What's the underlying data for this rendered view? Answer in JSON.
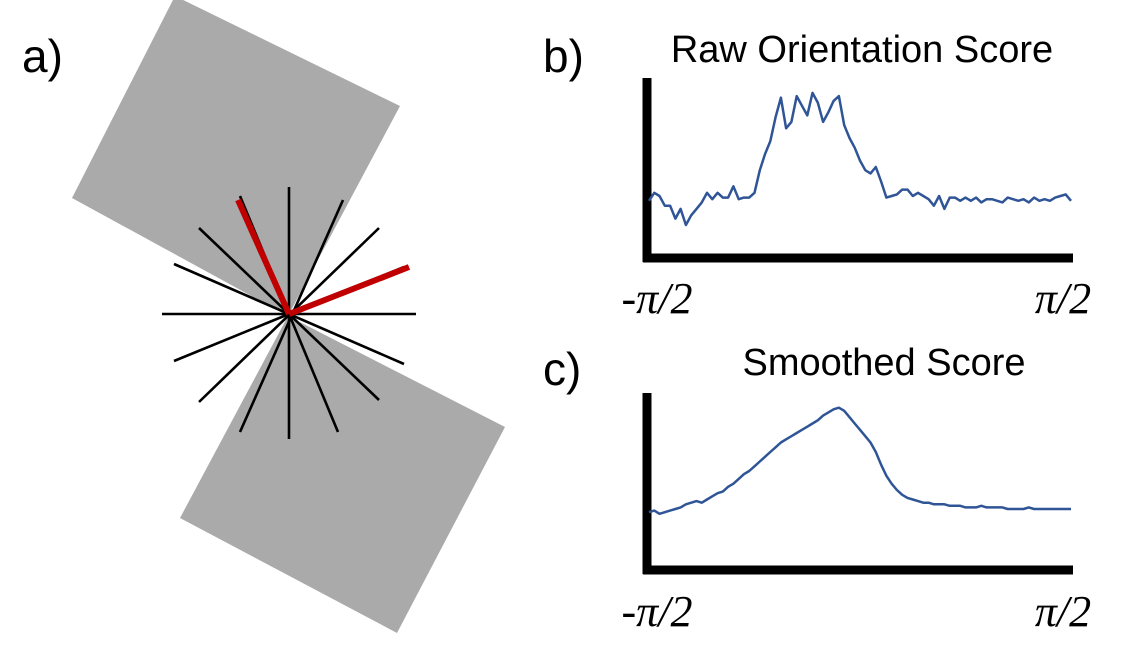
{
  "figure": {
    "panel_a": {
      "label": "a)"
    },
    "panel_b": {
      "label": "b)",
      "title": "Raw Orientation Score"
    },
    "panel_c": {
      "label": "c)",
      "title": "Smoothed Score"
    }
  },
  "colors": {
    "square_fill": "#aaaaaa",
    "black_line": "#000000",
    "highlight_red": "#c00000",
    "curve_blue": "#2f5597"
  },
  "chart_data": [
    {
      "type": "line",
      "title": "Raw Orientation Score",
      "x_tick_labels": [
        "-π/2",
        "π/2"
      ],
      "x": [
        -1.5708,
        -1.5315,
        -1.4923,
        -1.453,
        -1.4137,
        -1.3745,
        -1.3352,
        -1.296,
        -1.2567,
        -1.2174,
        -1.1781,
        -1.1389,
        -1.0996,
        -1.0603,
        -1.0211,
        -0.9818,
        -0.9425,
        -0.9033,
        -0.864,
        -0.8247,
        -0.7854,
        -0.7461,
        -0.7069,
        -0.6676,
        -0.6283,
        -0.5891,
        -0.5498,
        -0.5105,
        -0.4712,
        -0.432,
        -0.3927,
        -0.3534,
        -0.3142,
        -0.2749,
        -0.2356,
        -0.1963,
        -0.1571,
        -0.1178,
        -0.0785,
        -0.0393,
        0,
        0.0393,
        0.0785,
        0.1178,
        0.1571,
        0.1963,
        0.2356,
        0.2749,
        0.3142,
        0.3534,
        0.3927,
        0.432,
        0.4712,
        0.5105,
        0.5498,
        0.5891,
        0.6283,
        0.6676,
        0.7069,
        0.7461,
        0.7854,
        0.8247,
        0.864,
        0.9033,
        0.9425,
        0.9818,
        1.0211,
        1.0603,
        1.0996,
        1.1389,
        1.1781,
        1.2174,
        1.2567,
        1.296,
        1.3352,
        1.3745,
        1.4137,
        1.453,
        1.4923,
        1.5315,
        1.5708
      ],
      "y": [
        0.33,
        0.38,
        0.36,
        0.3,
        0.3,
        0.22,
        0.28,
        0.18,
        0.24,
        0.28,
        0.32,
        0.38,
        0.34,
        0.38,
        0.35,
        0.35,
        0.42,
        0.34,
        0.35,
        0.35,
        0.38,
        0.52,
        0.62,
        0.7,
        0.85,
        0.97,
        0.78,
        0.82,
        0.98,
        0.92,
        0.86,
        1.0,
        0.94,
        0.82,
        0.88,
        0.95,
        0.98,
        0.8,
        0.72,
        0.66,
        0.58,
        0.52,
        0.5,
        0.54,
        0.45,
        0.35,
        0.36,
        0.37,
        0.4,
        0.4,
        0.36,
        0.38,
        0.36,
        0.34,
        0.3,
        0.36,
        0.28,
        0.35,
        0.35,
        0.33,
        0.35,
        0.33,
        0.35,
        0.32,
        0.34,
        0.34,
        0.33,
        0.32,
        0.35,
        0.34,
        0.33,
        0.34,
        0.32,
        0.35,
        0.33,
        0.34,
        0.33,
        0.35,
        0.36,
        0.37,
        0.33
      ],
      "xlim": [
        -1.5708,
        1.5708
      ],
      "ylim": [
        0,
        1.08
      ],
      "grid": false
    },
    {
      "type": "line",
      "title": "Smoothed Score",
      "x_tick_labels": [
        "-π/2",
        "π/2"
      ],
      "x": [
        -1.5708,
        -1.5315,
        -1.4923,
        -1.453,
        -1.4137,
        -1.3745,
        -1.3352,
        -1.296,
        -1.2567,
        -1.2174,
        -1.1781,
        -1.1389,
        -1.0996,
        -1.0603,
        -1.0211,
        -0.9818,
        -0.9425,
        -0.9033,
        -0.864,
        -0.8247,
        -0.7854,
        -0.7461,
        -0.7069,
        -0.6676,
        -0.6283,
        -0.5891,
        -0.5498,
        -0.5105,
        -0.4712,
        -0.432,
        -0.3927,
        -0.3534,
        -0.3142,
        -0.2749,
        -0.2356,
        -0.1963,
        -0.1571,
        -0.1178,
        -0.0785,
        -0.0393,
        0,
        0.0393,
        0.0785,
        0.1178,
        0.1571,
        0.1963,
        0.2356,
        0.2749,
        0.3142,
        0.3534,
        0.3927,
        0.432,
        0.4712,
        0.5105,
        0.5498,
        0.5891,
        0.6283,
        0.6676,
        0.7069,
        0.7461,
        0.7854,
        0.8247,
        0.864,
        0.9033,
        0.9425,
        0.9818,
        1.0211,
        1.0603,
        1.0996,
        1.1389,
        1.1781,
        1.2174,
        1.2567,
        1.296,
        1.3352,
        1.3745,
        1.4137,
        1.453,
        1.4923,
        1.5315,
        1.5708
      ],
      "y": [
        0.34,
        0.35,
        0.33,
        0.34,
        0.35,
        0.36,
        0.37,
        0.39,
        0.4,
        0.41,
        0.4,
        0.42,
        0.44,
        0.46,
        0.47,
        0.5,
        0.52,
        0.55,
        0.58,
        0.6,
        0.63,
        0.66,
        0.69,
        0.72,
        0.75,
        0.78,
        0.8,
        0.82,
        0.84,
        0.86,
        0.88,
        0.9,
        0.92,
        0.95,
        0.97,
        0.99,
        1.0,
        0.98,
        0.94,
        0.9,
        0.86,
        0.82,
        0.78,
        0.72,
        0.64,
        0.57,
        0.52,
        0.48,
        0.45,
        0.43,
        0.42,
        0.41,
        0.4,
        0.4,
        0.39,
        0.39,
        0.39,
        0.38,
        0.38,
        0.38,
        0.37,
        0.37,
        0.37,
        0.38,
        0.37,
        0.37,
        0.37,
        0.37,
        0.36,
        0.36,
        0.36,
        0.36,
        0.37,
        0.36,
        0.36,
        0.36,
        0.36,
        0.36,
        0.36,
        0.36,
        0.36
      ],
      "xlim": [
        -1.5708,
        1.5708
      ],
      "ylim": [
        0,
        1.08
      ],
      "grid": false
    }
  ]
}
